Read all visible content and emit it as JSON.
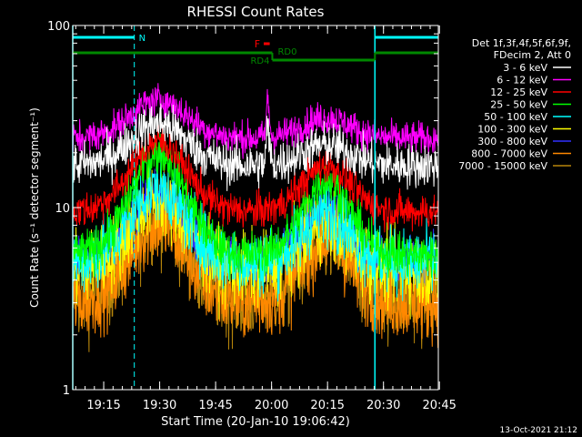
{
  "chart_data": {
    "type": "line",
    "title": "RHESSI Count Rates",
    "xlabel": "Start Time (20-Jan-10 19:06:42)",
    "ylabel": "Count Rate (s⁻¹ detector segment⁻¹)",
    "yscale": "log",
    "ylim": [
      1,
      100
    ],
    "xlim_minutes": [
      0,
      98
    ],
    "x_ticks": [
      {
        "label": "19:15",
        "t": 8.3
      },
      {
        "label": "19:30",
        "t": 23.3
      },
      {
        "label": "19:45",
        "t": 38.3
      },
      {
        "label": "20:00",
        "t": 53.3
      },
      {
        "label": "20:15",
        "t": 68.3
      },
      {
        "label": "20:30",
        "t": 83.3
      },
      {
        "label": "20:45",
        "t": 98.3
      }
    ],
    "y_ticks": [
      {
        "label": "1",
        "v": 1
      },
      {
        "label": "10",
        "v": 10
      },
      {
        "label": "100",
        "v": 100
      }
    ],
    "legend_header": [
      "Det 1f,3f,4f,5f,6f,9f,",
      "FDecim 2, Att 0"
    ],
    "series": [
      {
        "name": "3 - 6 keV",
        "color": "#ffffff",
        "base": 17,
        "peak1": 29,
        "peak2": 22,
        "noise": 0.06,
        "offset": 0,
        "flare_spike": true
      },
      {
        "name": "6 - 12 keV",
        "color": "#ff00ff",
        "base": 24,
        "peak1": 39,
        "peak2": 31,
        "noise": 0.045,
        "offset": 0,
        "flare_spike": true
      },
      {
        "name": "12 - 25 keV",
        "color": "#ff0000",
        "base": 9.5,
        "peak1": 23,
        "peak2": 17,
        "noise": 0.05,
        "offset": 0,
        "flare_spike": false
      },
      {
        "name": "25 - 50 keV",
        "color": "#00ff00",
        "base": 5.5,
        "peak1": 20,
        "peak2": 14,
        "noise": 0.06,
        "offset": 0,
        "flare_spike": false
      },
      {
        "name": "50 - 100 keV",
        "color": "#00ffff",
        "base": 5,
        "peak1": 13,
        "peak2": 9.5,
        "noise": 0.09,
        "offset": 0,
        "flare_spike": false
      },
      {
        "name": "100 - 300 keV",
        "color": "#ffff00",
        "base": 4.5,
        "peak1": 11,
        "peak2": 8,
        "noise": 0.1,
        "offset": 0,
        "flare_spike": false
      },
      {
        "name": "300 - 800 keV",
        "color": "#3030ff",
        "base": 5,
        "peak1": 11.5,
        "peak2": 9.5,
        "noise": 0.07,
        "offset": 0,
        "flare_spike": false
      },
      {
        "name": "800 - 7000 keV",
        "color": "#ff8800",
        "base": 3,
        "peak1": 8,
        "peak2": 6.5,
        "noise": 0.1,
        "offset": 0,
        "flare_spike": false
      },
      {
        "name": "7000 - 15000 keV",
        "color": "#b8860b",
        "base": 3.2,
        "peak1": 9,
        "peak2": 6.5,
        "noise": 0.12,
        "offset": 0,
        "flare_spike": false
      }
    ],
    "annotations": {
      "night_label": "N",
      "flare_label": "F",
      "rd0_label": "RD0",
      "rd4_label": "RD4",
      "night_intervals_min": [
        [
          0,
          16.5
        ],
        [
          81,
          98
        ]
      ],
      "saa_lines_min": [
        16.5,
        98
      ],
      "night_edge_lines_min": [
        0,
        81
      ],
      "flare_min": [
        51.2,
        52.8
      ],
      "rd0_min": [
        53.5,
        81
      ],
      "rd4_min": [
        0,
        53.5,
        81,
        98
      ],
      "peak1_center_min": 23,
      "peak2_center_min": 68,
      "flare_center_min": 52.3
    },
    "colors": {
      "night": "#00ffff",
      "flare": "#ff0000",
      "decimation": "#008800"
    }
  },
  "timestamp": "13-Oct-2021 21:12"
}
